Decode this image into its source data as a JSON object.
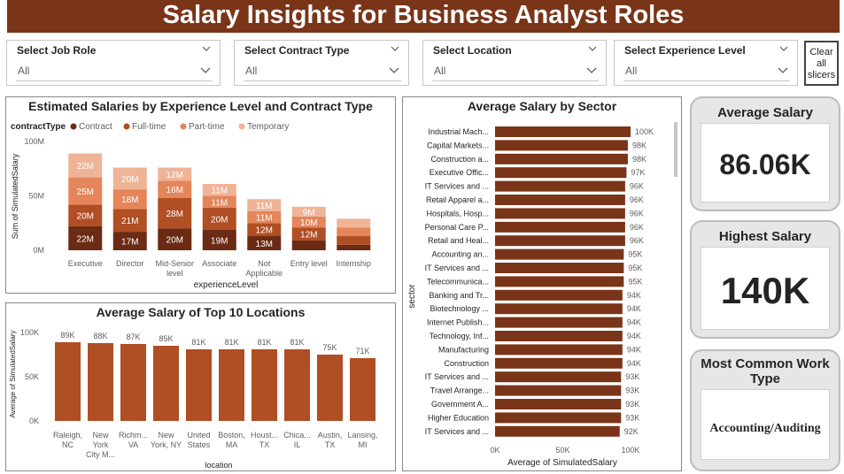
{
  "header": {
    "title": "Salary Insights for Business Analyst Roles"
  },
  "slicers": [
    {
      "label": "Select Job Role",
      "value": "All"
    },
    {
      "label": "Select Contract Type",
      "value": "All"
    },
    {
      "label": "Select Location",
      "value": "All"
    },
    {
      "label": "Select Experience Level",
      "value": "All"
    }
  ],
  "clear_button": {
    "lines": [
      "Clear",
      "all",
      "slicers"
    ]
  },
  "cards": {
    "average_salary": {
      "title": "Average Salary",
      "value": "86.06K"
    },
    "highest_salary": {
      "title": "Highest Salary",
      "value": "140K"
    },
    "work_type": {
      "title": "Most Common Work Type",
      "value": "Accounting/Auditing"
    }
  },
  "colors": {
    "contract": "#6b2a14",
    "full_time": "#b04e24",
    "part_time": "#e4855a",
    "temporary": "#efb497",
    "bar": "#b04e24",
    "sector_bar": "#7a3418",
    "header": "#7a3418"
  },
  "chart_data": [
    {
      "type": "bar",
      "stacked": true,
      "title": "Estimated Salaries by Experience Level and Contract Type",
      "legend_title": "contractType",
      "legend_position": "top-left",
      "xlabel": "experienceLevel",
      "ylabel": "Sum of SimulatedSalary",
      "ylim": [
        0,
        100
      ],
      "yticks": [
        "0M",
        "50M",
        "100M"
      ],
      "categories": [
        [
          "Executive"
        ],
        [
          "Director"
        ],
        [
          "Mid-Senior",
          "level"
        ],
        [
          "Associate"
        ],
        [
          "Not",
          "Applicable"
        ],
        [
          "Entry level"
        ],
        [
          "Internship"
        ]
      ],
      "series": [
        {
          "name": "Contract",
          "values": [
            22,
            17,
            20,
            19,
            13,
            9,
            5
          ],
          "labels": [
            "22M",
            "17M",
            "20M",
            "19M",
            "13M",
            "",
            ""
          ]
        },
        {
          "name": "Full-time",
          "values": [
            20,
            21,
            28,
            20,
            12,
            12,
            8
          ],
          "labels": [
            "20M",
            "21M",
            "28M",
            "20M",
            "12M",
            "12M",
            ""
          ]
        },
        {
          "name": "Part-time",
          "values": [
            25,
            18,
            16,
            11,
            11,
            10,
            8
          ],
          "labels": [
            "25M",
            "18M",
            "16M",
            "11M",
            "11M",
            "10M",
            ""
          ]
        },
        {
          "name": "Temporary",
          "values": [
            22,
            20,
            12,
            11,
            11,
            9,
            8
          ],
          "labels": [
            "22M",
            "20M",
            "12M",
            "11M",
            "11M",
            "9M",
            ""
          ]
        }
      ]
    },
    {
      "type": "bar",
      "orientation": "horizontal",
      "title": "Average Salary by Sector",
      "xlabel": "Average of SimulatedSalary",
      "ylabel": "sector",
      "xlim": [
        0,
        100
      ],
      "xticks": [
        "0K",
        "50K",
        "100K"
      ],
      "categories": [
        "Industrial Mach...",
        "Capital Markets...",
        "Construction a...",
        "Executive Offic...",
        "IT Services and ...",
        "Retail Apparel a...",
        "Hospitals, Hosp...",
        "Personal Care P...",
        "Retail and Heal...",
        "Accounting an...",
        "IT Services and ...",
        "Telecommunica...",
        "Banking and Tr...",
        "Biotechnology ...",
        "Internet Publish...",
        "Technology, Inf...",
        "Manufacturing",
        "Construction",
        "IT Services and ...",
        "Travel Arrange...",
        "Government A...",
        "Higher Education",
        "IT Services and ..."
      ],
      "values": [
        100,
        98,
        98,
        97,
        96,
        96,
        96,
        96,
        96,
        95,
        95,
        95,
        94,
        94,
        94,
        94,
        94,
        94,
        93,
        93,
        93,
        93,
        92
      ],
      "labels": [
        "100K",
        "98K",
        "98K",
        "97K",
        "96K",
        "96K",
        "96K",
        "96K",
        "96K",
        "95K",
        "95K",
        "95K",
        "94K",
        "94K",
        "94K",
        "94K",
        "94K",
        "94K",
        "93K",
        "93K",
        "93K",
        "93K",
        "92K"
      ]
    },
    {
      "type": "bar",
      "title": "Average Salary of Top 10 Locations",
      "xlabel": "location",
      "ylabel": "Average of SimulatedSalary",
      "ylim": [
        0,
        100
      ],
      "yticks": [
        "0K",
        "50K",
        "100K"
      ],
      "categories": [
        [
          "Raleigh,",
          "NC"
        ],
        [
          "New",
          "York",
          "City M..."
        ],
        [
          "Richm...",
          "VA"
        ],
        [
          "New",
          "York, NY"
        ],
        [
          "United",
          "States"
        ],
        [
          "Boston,",
          "MA"
        ],
        [
          "Houst...",
          "TX"
        ],
        [
          "Chica...",
          "IL"
        ],
        [
          "Austin,",
          "TX"
        ],
        [
          "Lansing,",
          "MI"
        ]
      ],
      "values": [
        89,
        88,
        87,
        85,
        81,
        81,
        81,
        81,
        75,
        71
      ],
      "labels": [
        "89K",
        "88K",
        "87K",
        "85K",
        "81K",
        "81K",
        "81K",
        "81K",
        "75K",
        "71K"
      ]
    }
  ]
}
